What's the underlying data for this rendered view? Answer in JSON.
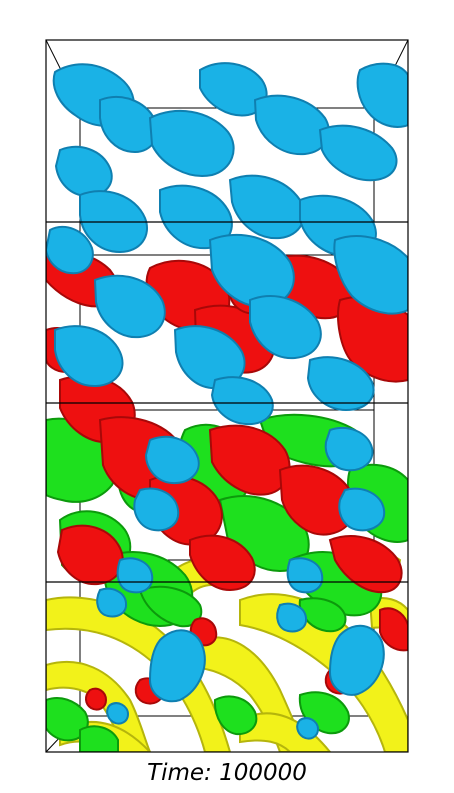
{
  "caption": {
    "label": "Time: 100000"
  },
  "colors": {
    "background": "#ffffff",
    "frame": "#000000",
    "phase_blue": "#1ab2e6",
    "phase_blue_dark": "#0f7fb0",
    "phase_red": "#ee1010",
    "phase_red_dark": "#a80808",
    "phase_green": "#1ee01e",
    "phase_green_dark": "#0c9a0c",
    "phase_yellow": "#f2f21a",
    "phase_yellow_dark": "#b5b50c"
  }
}
